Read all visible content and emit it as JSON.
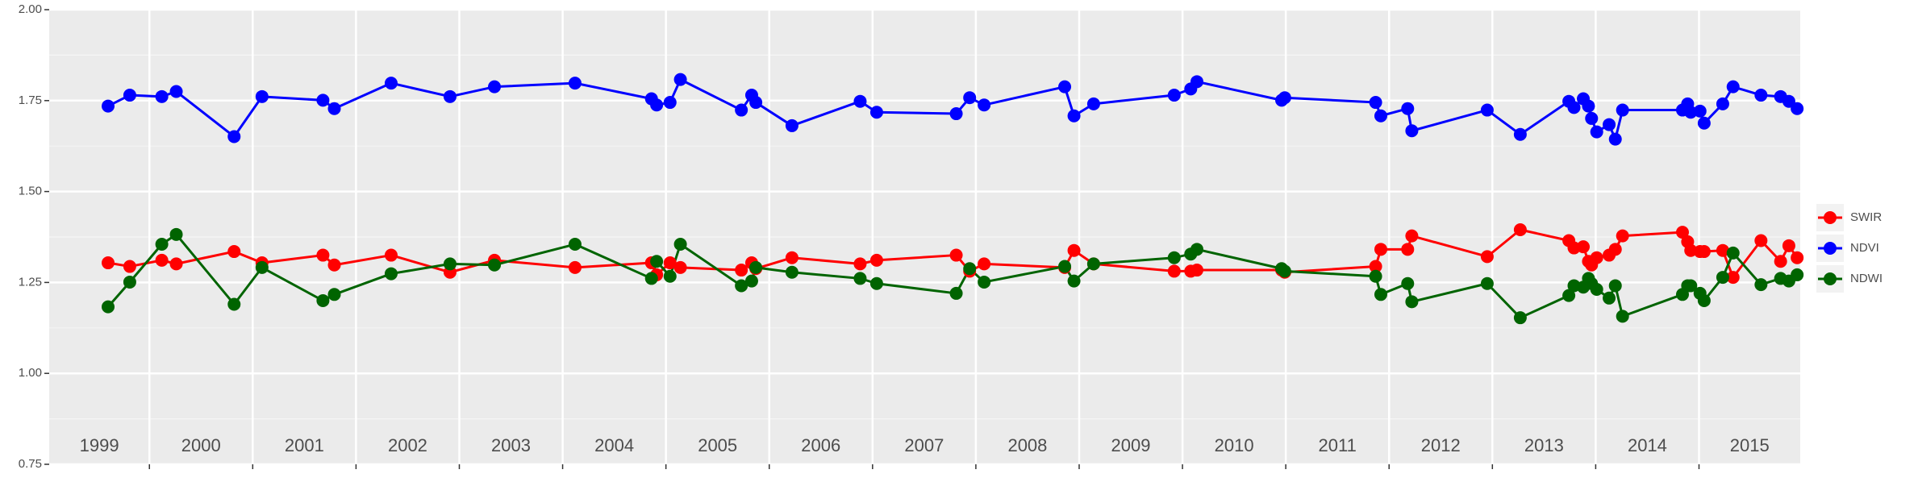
{
  "chart_data": {
    "type": "line",
    "legend_position": "right",
    "grid": true,
    "xlim": [
      1999.03,
      2015.98
    ],
    "xticks": [
      2000,
      2001,
      2002,
      2003,
      2004,
      2005,
      2006,
      2007,
      2008,
      2009,
      2010,
      2011,
      2012,
      2013,
      2014,
      2015
    ],
    "year_labels": [
      "1999",
      "2000",
      "2001",
      "2002",
      "2003",
      "2004",
      "2005",
      "2006",
      "2007",
      "2008",
      "2009",
      "2010",
      "2011",
      "2012",
      "2013",
      "2014",
      "2015"
    ],
    "ylim": [
      0.75,
      2.0
    ],
    "yticks": [
      0.75,
      {
        "value": 1.0,
        "label": "1.00"
      },
      1.25,
      {
        "value": 1.5,
        "label": "1.50"
      },
      1.75,
      {
        "value": 2.0,
        "label": "2.00"
      }
    ],
    "x": [
      1999.6,
      1999.81,
      2000.12,
      2000.26,
      2000.82,
      2001.09,
      2001.68,
      2001.79,
      2002.34,
      2002.91,
      2003.34,
      2004.12,
      2004.86,
      2004.91,
      2005.04,
      2005.14,
      2005.73,
      2005.83,
      2005.87,
      2006.22,
      2006.88,
      2007.04,
      2007.81,
      2007.94,
      2008.08,
      2008.86,
      2008.95,
      2009.14,
      2009.92,
      2010.08,
      2010.14,
      2010.96,
      2010.99,
      2011.87,
      2011.92,
      2012.18,
      2012.22,
      2012.95,
      2013.27,
      2013.74,
      2013.79,
      2013.88,
      2013.93,
      2013.96,
      2014.01,
      2014.13,
      2014.19,
      2014.26,
      2014.84,
      2014.89,
      2014.92,
      2015.01,
      2015.05,
      2015.23,
      2015.33,
      2015.6,
      2015.79,
      2015.87,
      2015.95
    ],
    "series": [
      {
        "name": "SWIR",
        "color": "#ff0000",
        "values": [
          1.304,
          1.294,
          1.311,
          1.301,
          1.335,
          1.304,
          1.325,
          1.298,
          1.325,
          1.278,
          1.311,
          1.291,
          1.304,
          1.271,
          1.304,
          1.291,
          1.284,
          1.304,
          1.288,
          1.318,
          1.301,
          1.311,
          1.325,
          1.281,
          1.301,
          1.291,
          1.338,
          1.301,
          1.281,
          1.281,
          1.284,
          1.284,
          1.278,
          1.294,
          1.341,
          1.341,
          1.378,
          1.321,
          1.395,
          1.365,
          1.345,
          1.348,
          1.308,
          1.298,
          1.318,
          1.325,
          1.341,
          1.378,
          1.388,
          1.362,
          1.338,
          1.335,
          1.335,
          1.338,
          1.264,
          1.365,
          1.308,
          1.351,
          1.318
        ]
      },
      {
        "name": "NDVI",
        "color": "#0000ff",
        "values": [
          1.735,
          1.765,
          1.761,
          1.775,
          1.651,
          1.761,
          1.751,
          1.728,
          1.798,
          1.761,
          1.788,
          1.798,
          1.755,
          1.738,
          1.745,
          1.808,
          1.724,
          1.765,
          1.745,
          1.681,
          1.748,
          1.718,
          1.714,
          1.758,
          1.738,
          1.788,
          1.708,
          1.741,
          1.765,
          1.782,
          1.802,
          1.751,
          1.758,
          1.745,
          1.708,
          1.728,
          1.667,
          1.724,
          1.657,
          1.748,
          1.731,
          1.755,
          1.735,
          1.701,
          1.664,
          1.684,
          1.644,
          1.724,
          1.724,
          1.741,
          1.718,
          1.721,
          1.688,
          1.741,
          1.788,
          1.765,
          1.761,
          1.748,
          1.728
        ]
      },
      {
        "name": "NDWI",
        "color": "#006400",
        "values": [
          1.183,
          1.251,
          1.355,
          1.382,
          1.19,
          1.291,
          1.2,
          1.217,
          1.274,
          1.301,
          1.298,
          1.355,
          1.261,
          1.308,
          1.267,
          1.355,
          1.241,
          1.254,
          1.291,
          1.278,
          1.261,
          1.247,
          1.22,
          1.288,
          1.251,
          1.294,
          1.254,
          1.301,
          1.318,
          1.328,
          1.341,
          1.288,
          1.281,
          1.267,
          1.217,
          1.247,
          1.197,
          1.247,
          1.153,
          1.214,
          1.241,
          1.237,
          1.261,
          1.247,
          1.231,
          1.207,
          1.241,
          1.157,
          1.217,
          1.241,
          1.241,
          1.22,
          1.2,
          1.264,
          1.331,
          1.244,
          1.261,
          1.254,
          1.271
        ]
      }
    ]
  }
}
